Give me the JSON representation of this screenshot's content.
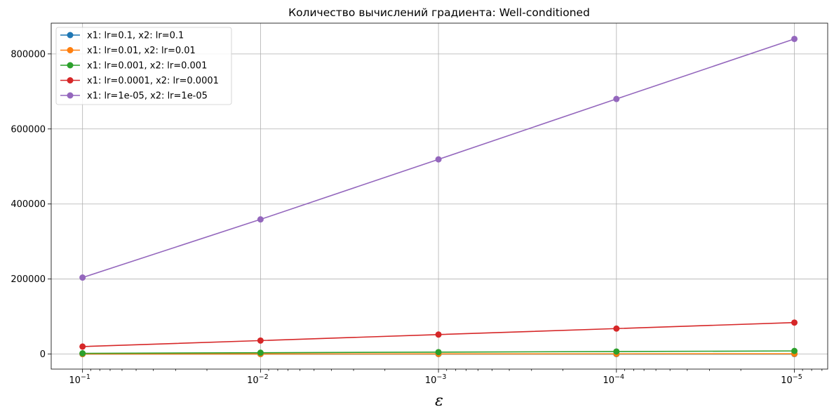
{
  "chart_data": {
    "type": "line",
    "title": "Количество вычислений градиента: Well-conditioned",
    "xlabel": "ε",
    "ylabel": "",
    "x_scale": "log",
    "x_inverted": true,
    "x": [
      0.1,
      0.01,
      0.001,
      0.0001,
      1e-05
    ],
    "x_tick_labels": [
      {
        "base": "10",
        "exp": "−1"
      },
      {
        "base": "10",
        "exp": "−2"
      },
      {
        "base": "10",
        "exp": "−3"
      },
      {
        "base": "10",
        "exp": "−4"
      },
      {
        "base": "10",
        "exp": "−5"
      }
    ],
    "y_ticks": [
      0,
      200000,
      400000,
      600000,
      800000
    ],
    "y_tick_labels": [
      "0",
      "200000",
      "400000",
      "600000",
      "800000"
    ],
    "ylim": [
      -40000,
      882000
    ],
    "grid": true,
    "legend_position": "upper-left",
    "series": [
      {
        "name": "x1: lr=0.1, x2: lr=0.1",
        "color": "#1f77b4",
        "values": [
          24,
          44,
          64,
          84,
          104
        ]
      },
      {
        "name": "x1: lr=0.01, x2: lr=0.01",
        "color": "#ff7f0e",
        "values": [
          200,
          360,
          520,
          680,
          840
        ]
      },
      {
        "name": "x1: lr=0.001, x2: lr=0.001",
        "color": "#2ca02c",
        "values": [
          2000,
          3600,
          5200,
          6800,
          8400
        ]
      },
      {
        "name": "x1: lr=0.0001, x2: lr=0.0001",
        "color": "#d62728",
        "values": [
          20000,
          36000,
          52000,
          68000,
          84000
        ]
      },
      {
        "name": "x1: lr=1e-05, x2: lr=1e-05",
        "color": "#9467bd",
        "values": [
          204000,
          359000,
          519000,
          680000,
          840000
        ]
      }
    ]
  }
}
